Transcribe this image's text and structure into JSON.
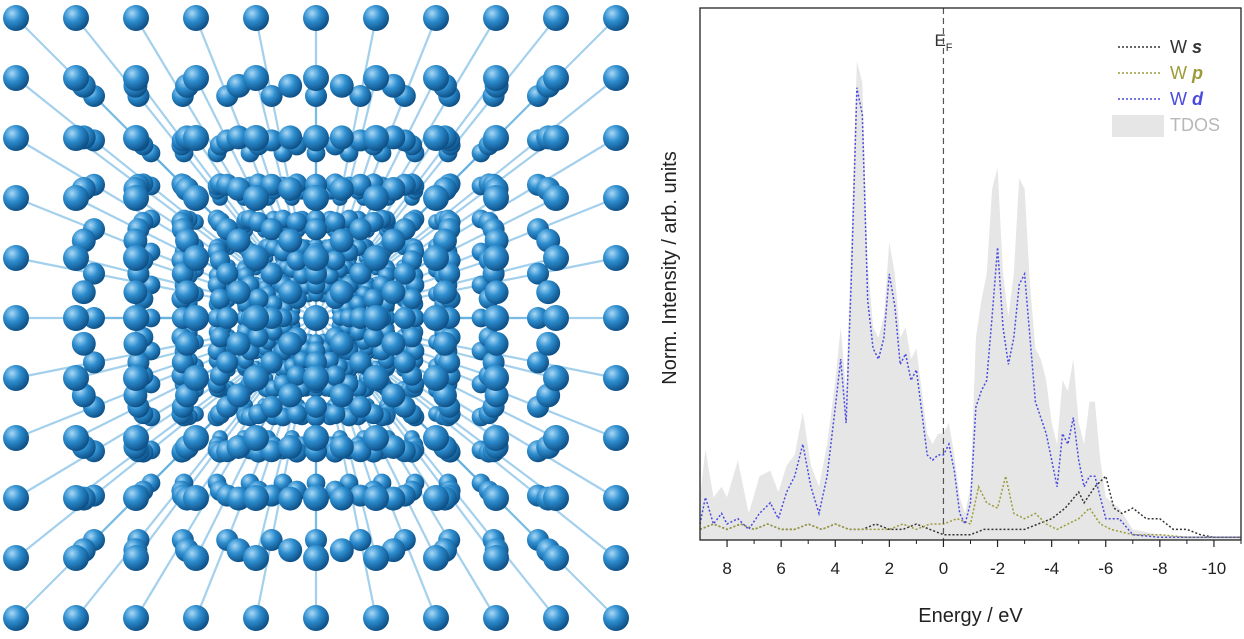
{
  "lattice": {
    "atom_color": "#2f8fd0",
    "atom_dark": "#0d4f86",
    "atom_light": "#a8d8f6",
    "bond_color": "#58a9dd"
  },
  "chart_data": {
    "type": "line",
    "xlabel": "Energy / eV",
    "ylabel": "Norm. Intensity / arb. units",
    "xlim": [
      9,
      -11
    ],
    "x_reversed": true,
    "ylim": [
      0,
      1.0
    ],
    "x_ticks": [
      8,
      6,
      4,
      2,
      0,
      -2,
      -4,
      -6,
      -8,
      -10
    ],
    "x_tick_labels": [
      "8",
      "6",
      "4",
      "2",
      "0",
      "-2",
      "-4",
      "-6",
      "-8",
      "-10"
    ],
    "fermi": {
      "x": 0,
      "label": "E",
      "subscript": "F"
    },
    "legend_position": "top-right",
    "grid": false,
    "series": [
      {
        "name": "W s",
        "label": "W ",
        "label_italic": "s",
        "color": "#333333",
        "style": "dotted",
        "x": [
          9,
          8.5,
          8,
          7.5,
          7,
          6.5,
          6,
          5.5,
          5,
          4.5,
          4,
          3.5,
          3,
          2.5,
          2,
          1.5,
          1,
          0.5,
          0,
          -0.5,
          -1,
          -1.5,
          -2,
          -2.5,
          -3,
          -3.5,
          -4,
          -4.5,
          -5,
          -5.2,
          -5.6,
          -6,
          -6.3,
          -6.6,
          -7,
          -7.5,
          -8,
          -8.5,
          -9,
          -9.5,
          -10,
          -11
        ],
        "y": [
          0.02,
          0.03,
          0.02,
          0.03,
          0.02,
          0.03,
          0.02,
          0.02,
          0.03,
          0.02,
          0.03,
          0.02,
          0.02,
          0.03,
          0.02,
          0.02,
          0.03,
          0.02,
          0.01,
          0.01,
          0.01,
          0.02,
          0.02,
          0.02,
          0.02,
          0.03,
          0.04,
          0.06,
          0.09,
          0.07,
          0.1,
          0.12,
          0.06,
          0.05,
          0.06,
          0.04,
          0.04,
          0.02,
          0.02,
          0.01,
          0.005,
          0.005
        ]
      },
      {
        "name": "W p",
        "label": "W ",
        "label_italic": "p",
        "color": "#9b9b3a",
        "style": "dotted",
        "x": [
          9,
          8.5,
          8,
          7.5,
          7,
          6.5,
          6,
          5.5,
          5,
          4.5,
          4,
          3.5,
          3,
          2.5,
          2,
          1.5,
          1,
          0.5,
          0,
          -0.5,
          -1,
          -1.3,
          -1.6,
          -2,
          -2.3,
          -2.6,
          -3,
          -3.4,
          -3.8,
          -4.2,
          -4.6,
          -5,
          -5.4,
          -5.8,
          -6.2,
          -7,
          -8,
          -9,
          -10,
          -11
        ],
        "y": [
          0.02,
          0.03,
          0.02,
          0.03,
          0.02,
          0.03,
          0.02,
          0.02,
          0.03,
          0.02,
          0.03,
          0.02,
          0.02,
          0.02,
          0.02,
          0.03,
          0.02,
          0.03,
          0.03,
          0.04,
          0.03,
          0.1,
          0.07,
          0.06,
          0.12,
          0.05,
          0.04,
          0.05,
          0.03,
          0.02,
          0.03,
          0.04,
          0.06,
          0.03,
          0.02,
          0.01,
          0.01,
          0.005,
          0.005,
          0.005
        ]
      },
      {
        "name": "W d",
        "label": "W ",
        "label_italic": "d",
        "color": "#4a4ae0",
        "style": "dotted",
        "x": [
          9,
          8.8,
          8.5,
          8.2,
          8,
          7.6,
          7.2,
          6.8,
          6.4,
          6.1,
          5.8,
          5.5,
          5.2,
          4.9,
          4.6,
          4.3,
          4,
          3.8,
          3.6,
          3.4,
          3.2,
          3.0,
          2.8,
          2.6,
          2.4,
          2.2,
          2.0,
          1.8,
          1.6,
          1.4,
          1.2,
          1.0,
          0.8,
          0.6,
          0.4,
          0.2,
          0,
          -0.2,
          -0.4,
          -0.6,
          -0.8,
          -1.0,
          -1.2,
          -1.4,
          -1.6,
          -1.8,
          -2.0,
          -2.2,
          -2.4,
          -2.6,
          -2.8,
          -3.0,
          -3.2,
          -3.4,
          -3.6,
          -3.8,
          -4.0,
          -4.2,
          -4.4,
          -4.6,
          -4.8,
          -5.0,
          -5.2,
          -5.4,
          -5.6,
          -5.8,
          -6.0,
          -6.5,
          -7,
          -8,
          -9,
          -10,
          -11
        ],
        "y": [
          0.03,
          0.08,
          0.03,
          0.05,
          0.03,
          0.04,
          0.02,
          0.05,
          0.07,
          0.04,
          0.09,
          0.12,
          0.18,
          0.1,
          0.05,
          0.12,
          0.25,
          0.34,
          0.22,
          0.5,
          0.85,
          0.8,
          0.45,
          0.36,
          0.34,
          0.38,
          0.5,
          0.44,
          0.33,
          0.35,
          0.3,
          0.32,
          0.24,
          0.16,
          0.15,
          0.16,
          0.16,
          0.18,
          0.13,
          0.05,
          0.03,
          0.07,
          0.25,
          0.28,
          0.3,
          0.42,
          0.55,
          0.4,
          0.33,
          0.38,
          0.48,
          0.5,
          0.38,
          0.26,
          0.23,
          0.2,
          0.15,
          0.1,
          0.2,
          0.18,
          0.23,
          0.15,
          0.1,
          0.12,
          0.12,
          0.08,
          0.04,
          0.04,
          0.01,
          0.005,
          0.005,
          0.005,
          0.005
        ]
      },
      {
        "name": "TDOS",
        "label": "TDOS",
        "color": "#e6e6e6",
        "style": "area",
        "x": [
          9,
          8.8,
          8.5,
          8.2,
          8,
          7.6,
          7.2,
          6.8,
          6.4,
          6.1,
          5.8,
          5.5,
          5.2,
          4.9,
          4.6,
          4.3,
          4,
          3.8,
          3.6,
          3.4,
          3.2,
          3.0,
          2.8,
          2.6,
          2.4,
          2.2,
          2.0,
          1.8,
          1.6,
          1.4,
          1.2,
          1.0,
          0.8,
          0.6,
          0.4,
          0.2,
          0,
          -0.2,
          -0.4,
          -0.6,
          -0.8,
          -1.0,
          -1.2,
          -1.4,
          -1.6,
          -1.8,
          -2.0,
          -2.2,
          -2.4,
          -2.6,
          -2.8,
          -3.0,
          -3.2,
          -3.4,
          -3.6,
          -3.8,
          -4.0,
          -4.2,
          -4.4,
          -4.6,
          -4.8,
          -5.0,
          -5.2,
          -5.4,
          -5.6,
          -5.8,
          -6.0,
          -6.5,
          -7,
          -8,
          -9,
          -10,
          -11
        ],
        "y": [
          0.08,
          0.17,
          0.08,
          0.1,
          0.08,
          0.15,
          0.05,
          0.12,
          0.13,
          0.09,
          0.14,
          0.16,
          0.24,
          0.14,
          0.1,
          0.18,
          0.3,
          0.4,
          0.28,
          0.58,
          0.9,
          0.86,
          0.52,
          0.4,
          0.38,
          0.42,
          0.56,
          0.5,
          0.38,
          0.4,
          0.34,
          0.36,
          0.28,
          0.2,
          0.18,
          0.2,
          0.2,
          0.22,
          0.16,
          0.08,
          0.05,
          0.1,
          0.38,
          0.45,
          0.5,
          0.66,
          0.7,
          0.5,
          0.42,
          0.5,
          0.68,
          0.66,
          0.48,
          0.36,
          0.34,
          0.3,
          0.22,
          0.18,
          0.3,
          0.28,
          0.34,
          0.22,
          0.18,
          0.26,
          0.26,
          0.15,
          0.08,
          0.06,
          0.02,
          0.01,
          0.005,
          0.005,
          0.005
        ]
      }
    ]
  }
}
